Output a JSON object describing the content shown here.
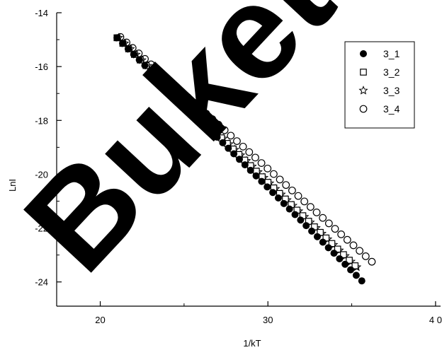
{
  "watermark": {
    "text": "Buketov"
  },
  "chart_data": {
    "type": "scatter",
    "title": "",
    "xlabel": "1/kT",
    "ylabel": "LnI",
    "xlim": [
      17.4,
      40.3
    ],
    "ylim": [
      -24.9,
      -14
    ],
    "x_ticks": [
      20,
      30,
      40
    ],
    "x_tick_labels": [
      "20",
      "30",
      "4 0"
    ],
    "x_minor_ticks": [
      25,
      35
    ],
    "y_ticks": [
      -14,
      -16,
      -18,
      -20,
      -22,
      -24
    ],
    "y_tick_labels": [
      "-14",
      "-16",
      "-18",
      "-20",
      "-22",
      "-24"
    ],
    "y_minor_ticks": [
      -15,
      -17,
      -19,
      -21,
      -23
    ],
    "grid": false,
    "legend": {
      "position": "top-right",
      "frame": true
    },
    "series": [
      {
        "name": "3_1",
        "marker": "filled-circle",
        "x_start": 21.0,
        "x_end": 35.6,
        "y_start": -14.93,
        "y_end": -23.96,
        "n": 45
      },
      {
        "name": "3_2",
        "marker": "open-square",
        "x_start": 21.0,
        "x_end": 35.2,
        "y_start": -14.93,
        "y_end": -23.4,
        "n": 42
      },
      {
        "name": "3_3",
        "marker": "open-star",
        "x_start": 21.1,
        "x_end": 35.3,
        "y_start": -14.93,
        "y_end": -23.45,
        "n": 42
      },
      {
        "name": "3_4",
        "marker": "open-circle",
        "x_start": 21.2,
        "x_end": 36.2,
        "y_start": -14.9,
        "y_end": -23.25,
        "n": 42
      }
    ]
  }
}
